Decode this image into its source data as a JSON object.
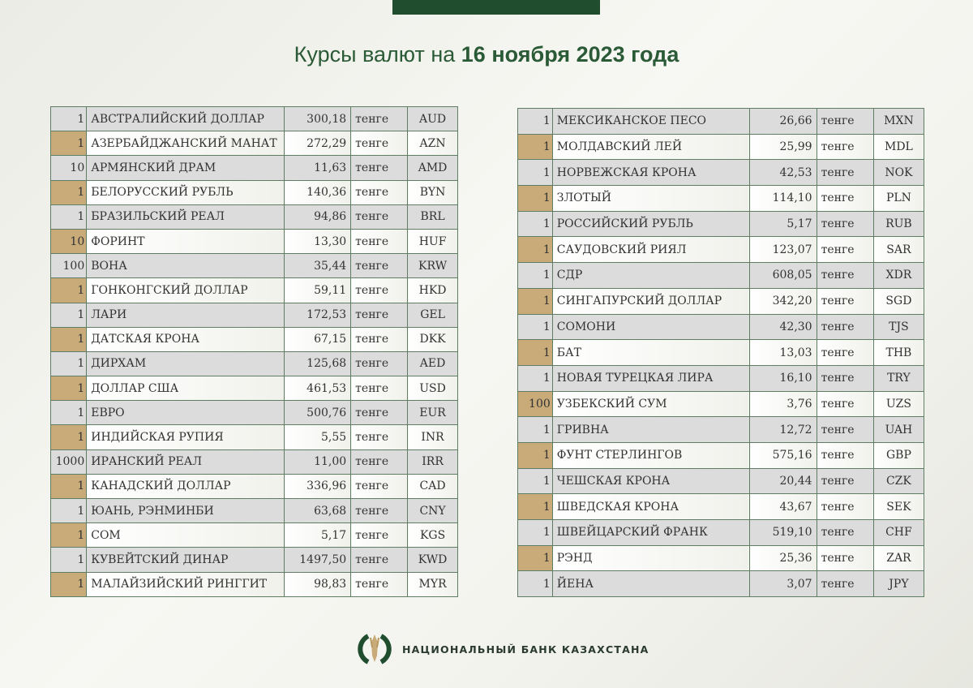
{
  "title": {
    "prefix": "Курсы валют на",
    "date": "16 ноября 2023 года"
  },
  "colors": {
    "brand_green": "#1f4d2e",
    "accent_tan": "#c8ab78",
    "row_gray": "#dcdcdc"
  },
  "left_table": [
    [
      "1",
      "АВСТРАЛИЙСКИЙ ДОЛЛАР",
      "300,18",
      "тенге",
      "AUD"
    ],
    [
      "1",
      "АЗЕРБАЙДЖАНСКИЙ МАНАТ",
      "272,29",
      "тенге",
      "AZN"
    ],
    [
      "10",
      "АРМЯНСКИЙ  ДРАМ",
      "11,63",
      "тенге",
      "AMD"
    ],
    [
      "1",
      "БЕЛОРУССКИЙ РУБЛЬ",
      "140,36",
      "тенге",
      "BYN"
    ],
    [
      "1",
      "БРАЗИЛЬСКИЙ РЕАЛ",
      "94,86",
      "тенге",
      "BRL"
    ],
    [
      "10",
      "ФОРИНТ",
      "13,30",
      "тенге",
      "HUF"
    ],
    [
      "100",
      "ВОНА",
      "35,44",
      "тенге",
      "KRW"
    ],
    [
      "1",
      "ГОНКОНГСКИЙ ДОЛЛАР",
      "59,11",
      "тенге",
      "HKD"
    ],
    [
      "1",
      "ЛАРИ",
      "172,53",
      "тенге",
      "GEL"
    ],
    [
      "1",
      "ДАТСКАЯ КРОНА",
      "67,15",
      "тенге",
      "DKK"
    ],
    [
      "1",
      "ДИРХАМ",
      "125,68",
      "тенге",
      "AED"
    ],
    [
      "1",
      "ДОЛЛАР США",
      "461,53",
      "тенге",
      "USD"
    ],
    [
      "1",
      "ЕВРО",
      "500,76",
      "тенге",
      "EUR"
    ],
    [
      "1",
      "ИНДИЙСКАЯ РУПИЯ",
      "5,55",
      "тенге",
      "INR"
    ],
    [
      "1000",
      "ИРАНСКИЙ РЕАЛ",
      "11,00",
      "тенге",
      "IRR"
    ],
    [
      "1",
      "КАНАДСКИЙ ДОЛЛАР",
      "336,96",
      "тенге",
      "CAD"
    ],
    [
      "1",
      "ЮАНЬ, РЭНМИНБИ",
      "63,68",
      "тенге",
      "CNY"
    ],
    [
      "1",
      "СОМ",
      "5,17",
      "тенге",
      "KGS"
    ],
    [
      "1",
      "КУВЕЙТСКИЙ ДИНАР",
      "1497,50",
      "тенге",
      "KWD"
    ],
    [
      "1",
      "МАЛАЙЗИЙСКИЙ РИНГГИТ",
      "98,83",
      "тенге",
      "MYR"
    ]
  ],
  "right_table": [
    [
      "1",
      "МЕКСИКАНСКОЕ ПЕСО",
      "26,66",
      "тенге",
      "MXN"
    ],
    [
      "1",
      "МОЛДАВСКИЙ ЛЕЙ",
      "25,99",
      "тенге",
      "MDL"
    ],
    [
      "1",
      "НОРВЕЖСКАЯ КРОНА",
      "42,53",
      "тенге",
      "NOK"
    ],
    [
      "1",
      "ЗЛОТЫЙ",
      "114,10",
      "тенге",
      "PLN"
    ],
    [
      "1",
      "РОССИЙСКИЙ РУБЛЬ",
      "5,17",
      "тенге",
      "RUB"
    ],
    [
      "1",
      "САУДОВСКИЙ РИЯЛ",
      "123,07",
      "тенге",
      "SAR"
    ],
    [
      "1",
      "СДР",
      "608,05",
      "тенге",
      "XDR"
    ],
    [
      "1",
      "СИНГАПУРСКИЙ ДОЛЛАР",
      "342,20",
      "тенге",
      "SGD"
    ],
    [
      "1",
      "СОМОНИ",
      "42,30",
      "тенге",
      "TJS"
    ],
    [
      "1",
      "БАТ",
      "13,03",
      "тенге",
      "THB"
    ],
    [
      "1",
      "НОВАЯ ТУРЕЦКАЯ ЛИРА",
      "16,10",
      "тенге",
      "TRY"
    ],
    [
      "100",
      "УЗБЕКСКИЙ СУМ",
      "3,76",
      "тенге",
      "UZS"
    ],
    [
      "1",
      "ГРИВНА",
      "12,72",
      "тенге",
      "UAH"
    ],
    [
      "1",
      "ФУНТ СТЕРЛИНГОВ",
      "575,16",
      "тенге",
      "GBP"
    ],
    [
      "1",
      "ЧЕШСКАЯ КРОНА",
      "20,44",
      "тенге",
      "CZK"
    ],
    [
      "1",
      "ШВЕДСКАЯ КРОНА",
      "43,67",
      "тенге",
      "SEK"
    ],
    [
      "1",
      "ШВЕЙЦАРСКИЙ ФРАНК",
      "519,10",
      "тенге",
      "CHF"
    ],
    [
      "1",
      "РЭНД",
      "25,36",
      "тенге",
      "ZAR"
    ],
    [
      "1",
      "ЙЕНА",
      "3,07",
      "тенге",
      "JPY"
    ]
  ],
  "footer": {
    "bank_name": "НАЦИОНАЛЬНЫЙ БАНК КАЗАХСТАНА",
    "logo_icon": "national-bank-emblem-icon"
  }
}
